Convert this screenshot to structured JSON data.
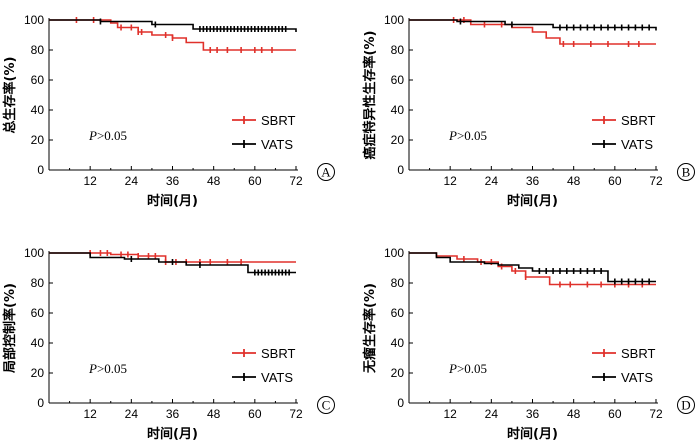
{
  "chart_data": [
    {
      "type": "line",
      "panel_label": "A",
      "ylabel": "总生存率(%)",
      "xlabel": "时间(月)",
      "xlim": [
        0,
        72
      ],
      "ylim": [
        0,
        100
      ],
      "xticks": [
        "12",
        "24",
        "36",
        "48",
        "60",
        "72"
      ],
      "yticks": [
        "0",
        "20",
        "40",
        "60",
        "80",
        "100"
      ],
      "annotation": {
        "italic": "P",
        "rest": ">0.05"
      },
      "legend_position": "right",
      "series": [
        {
          "name": "SBRT",
          "color": "#e0312b",
          "x": [
            0,
            14,
            18,
            20,
            26,
            30,
            36,
            40,
            45,
            72
          ],
          "y": [
            100,
            100,
            98,
            95,
            92,
            90,
            88,
            85,
            80,
            80
          ],
          "censored_x": [
            8,
            13,
            21,
            24,
            26,
            27,
            34,
            36,
            47,
            49,
            52,
            56,
            60,
            62,
            65
          ]
        },
        {
          "name": "VATS",
          "color": "#000000",
          "x": [
            0,
            15,
            30,
            42,
            72
          ],
          "y": [
            100,
            99,
            97,
            94,
            92
          ],
          "censored_x": [
            15,
            31,
            44,
            45,
            46,
            47,
            48,
            49,
            50,
            51,
            52,
            53,
            54,
            55,
            56,
            57,
            58,
            59,
            60,
            61,
            62,
            63,
            64,
            65,
            66,
            67,
            68,
            69
          ]
        }
      ]
    },
    {
      "type": "line",
      "panel_label": "B",
      "ylabel": "癌症特异性生存率(%)",
      "xlabel": "时间(月)",
      "xlim": [
        0,
        72
      ],
      "ylim": [
        0,
        100
      ],
      "xticks": [
        "12",
        "24",
        "36",
        "48",
        "60",
        "72"
      ],
      "yticks": [
        "0",
        "20",
        "40",
        "60",
        "80",
        "100"
      ],
      "annotation": {
        "italic": "P",
        "rest": ">0.05"
      },
      "legend_position": "right",
      "series": [
        {
          "name": "SBRT",
          "color": "#e0312b",
          "x": [
            0,
            18,
            30,
            36,
            40,
            44,
            72
          ],
          "y": [
            100,
            97,
            95,
            92,
            88,
            84,
            84
          ],
          "censored_x": [
            13,
            16,
            22,
            27,
            45,
            48,
            53,
            58,
            64,
            67
          ]
        },
        {
          "name": "VATS",
          "color": "#000000",
          "x": [
            0,
            14,
            28,
            42,
            72
          ],
          "y": [
            100,
            99,
            97,
            95,
            93
          ],
          "censored_x": [
            15,
            30,
            44,
            46,
            48,
            50,
            52,
            54,
            56,
            58,
            60,
            62,
            64,
            66,
            68,
            70
          ]
        }
      ]
    },
    {
      "type": "line",
      "panel_label": "C",
      "ylabel": "局部控制率(%)",
      "xlabel": "时间(月)",
      "xlim": [
        0,
        72
      ],
      "ylim": [
        0,
        100
      ],
      "xticks": [
        "12",
        "24",
        "36",
        "48",
        "60",
        "72"
      ],
      "yticks": [
        "0",
        "20",
        "40",
        "60",
        "80",
        "100"
      ],
      "annotation": {
        "italic": "P",
        "rest": ">0.05"
      },
      "legend_position": "right",
      "series": [
        {
          "name": "SBRT",
          "color": "#e0312b",
          "x": [
            0,
            18,
            26,
            34,
            72
          ],
          "y": [
            100,
            99,
            98,
            94,
            94
          ],
          "censored_x": [
            12,
            15,
            17,
            21,
            23,
            26,
            29,
            31,
            34,
            37,
            40,
            44,
            47,
            52,
            56
          ]
        },
        {
          "name": "VATS",
          "color": "#000000",
          "x": [
            0,
            12,
            22,
            32,
            40,
            58,
            72
          ],
          "y": [
            100,
            97,
            96,
            94,
            92,
            87,
            87
          ],
          "censored_x": [
            24,
            36,
            44,
            60,
            61,
            62,
            63,
            64,
            65,
            66,
            67,
            68,
            69,
            70
          ]
        }
      ]
    },
    {
      "type": "line",
      "panel_label": "D",
      "ylabel": "无瘤生存率(%)",
      "xlabel": "时间(月)",
      "xlim": [
        0,
        72
      ],
      "ylim": [
        0,
        100
      ],
      "xticks": [
        "12",
        "24",
        "36",
        "48",
        "60",
        "72"
      ],
      "yticks": [
        "0",
        "20",
        "40",
        "60",
        "80",
        "100"
      ],
      "annotation": {
        "italic": "P",
        "rest": ">0.05"
      },
      "legend_position": "right",
      "series": [
        {
          "name": "SBRT",
          "color": "#e0312b",
          "x": [
            0,
            8,
            14,
            20,
            26,
            30,
            34,
            41,
            72
          ],
          "y": [
            100,
            98,
            96,
            94,
            91,
            88,
            84,
            79,
            79
          ],
          "censored_x": [
            16,
            21,
            24,
            27,
            31,
            34,
            44,
            47,
            52,
            56,
            60,
            64,
            68
          ]
        },
        {
          "name": "VATS",
          "color": "#000000",
          "x": [
            0,
            8,
            12,
            22,
            26,
            32,
            36,
            58,
            72
          ],
          "y": [
            100,
            97,
            94,
            93,
            92,
            90,
            88,
            81,
            81
          ],
          "censored_x": [
            38,
            40,
            42,
            44,
            46,
            48,
            50,
            52,
            54,
            56,
            60,
            62,
            64,
            66,
            68,
            70
          ]
        }
      ]
    }
  ]
}
